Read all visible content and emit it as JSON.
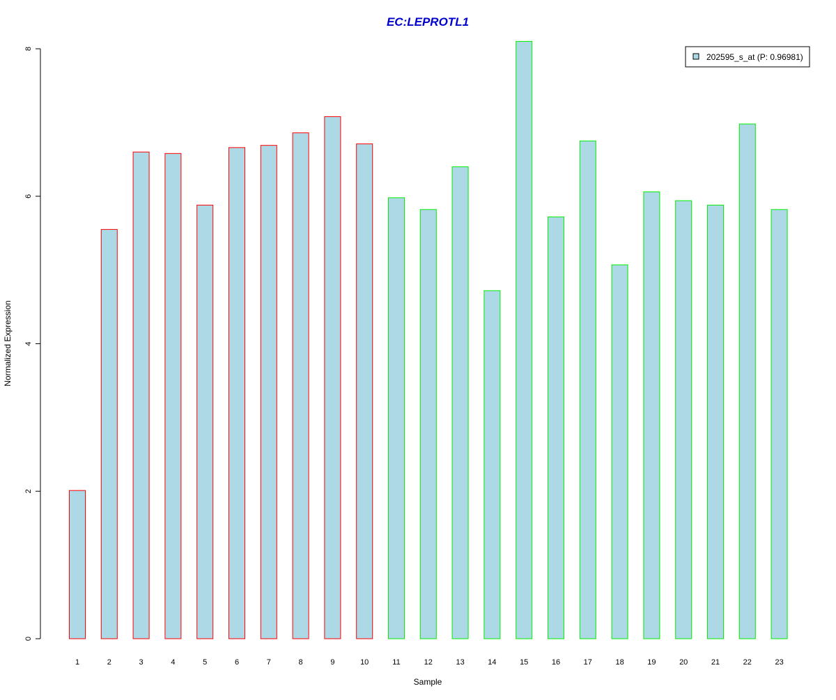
{
  "chart_data": {
    "type": "bar",
    "title": "EC:LEPROTL1",
    "xlabel": "Sample",
    "ylabel": "Normalized Expression",
    "categories": [
      "1",
      "2",
      "3",
      "4",
      "5",
      "6",
      "7",
      "8",
      "9",
      "10",
      "11",
      "12",
      "13",
      "14",
      "15",
      "16",
      "17",
      "18",
      "19",
      "20",
      "21",
      "22",
      "23"
    ],
    "series": [
      {
        "name": "202595_s_at (P: 0.96981)",
        "values": [
          2.01,
          5.55,
          6.6,
          6.58,
          5.88,
          6.66,
          6.69,
          6.86,
          7.08,
          6.71,
          5.98,
          5.82,
          6.4,
          4.72,
          8.1,
          5.72,
          6.75,
          5.07,
          6.06,
          5.94,
          5.88,
          6.98,
          5.82
        ]
      }
    ],
    "ylim": [
      0,
      8
    ],
    "yticks": [
      0,
      2,
      4,
      6,
      8
    ],
    "grid": false,
    "legend_position": "top-right",
    "colors": {
      "title": "#0000cc",
      "bar_fill": "#add8e6",
      "group1_border": "#ff0000",
      "group2_border": "#00ee00",
      "axis": "#000000"
    },
    "groups": [
      {
        "samples": [
          "1",
          "2",
          "3",
          "4",
          "5",
          "6",
          "7",
          "8",
          "9",
          "10"
        ],
        "color": "#ff0000"
      },
      {
        "samples": [
          "11",
          "12",
          "13",
          "14",
          "15",
          "16",
          "17",
          "18",
          "19",
          "20",
          "21",
          "22",
          "23"
        ],
        "color": "#00ee00"
      }
    ]
  }
}
